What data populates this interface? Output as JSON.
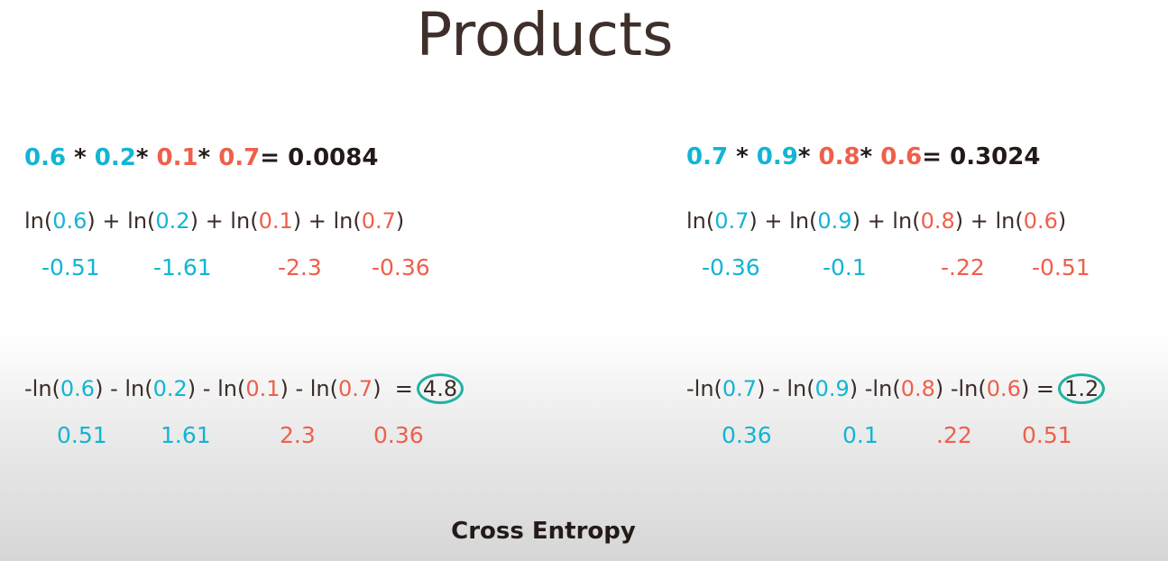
{
  "title": "Products",
  "footer": "Cross Entropy",
  "left": {
    "product": {
      "factors": [
        "0.6",
        "0.2",
        "0.1",
        "0.7"
      ],
      "result": "0.0084"
    },
    "ln_sum": {
      "args": [
        "0.6",
        "0.2",
        "0.1",
        "0.7"
      ]
    },
    "ln_values": [
      "-0.51",
      "-1.61",
      "-2.3",
      "-0.36"
    ],
    "neg_ln_sum": {
      "args": [
        "0.6",
        "0.2",
        "0.1",
        "0.7"
      ],
      "result": "4.8"
    },
    "neg_ln_values": [
      "0.51",
      "1.61",
      "2.3",
      "0.36"
    ]
  },
  "right": {
    "product": {
      "factors": [
        "0.7",
        "0.9",
        "0.8",
        "0.6"
      ],
      "result": "0.3024"
    },
    "ln_sum": {
      "args": [
        "0.7",
        "0.9",
        "0.8",
        "0.6"
      ]
    },
    "ln_values": [
      "-0.36",
      "-0.1",
      "-.22",
      "-0.51"
    ],
    "neg_ln_sum": {
      "args": [
        "0.7",
        "0.9",
        "0.8",
        "0.6"
      ],
      "result": "1.2"
    },
    "neg_ln_values": [
      "0.36",
      "0.1",
      ".22",
      "0.51"
    ]
  },
  "colors": {
    "blue": "#12b5d3",
    "red": "#ef5f4b",
    "circle": "#1fb3a0"
  }
}
